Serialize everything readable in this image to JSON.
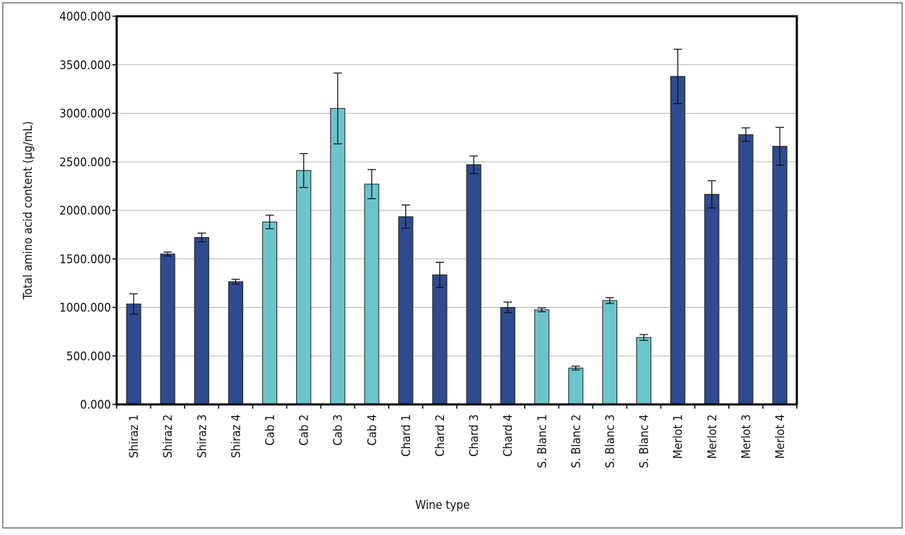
{
  "chart_data": {
    "type": "bar",
    "title": "",
    "xlabel": "Wine type",
    "ylabel": "Total amino acid content (µg/mL)",
    "ylim": [
      0,
      4000
    ],
    "yticks": [
      0,
      500,
      1000,
      1500,
      2000,
      2500,
      3000,
      3500,
      4000
    ],
    "ytick_labels": [
      "0.000",
      "500.000",
      "1000.000",
      "1500.000",
      "2000.000",
      "2500.000",
      "3000.000",
      "3500.000",
      "4000.000"
    ],
    "grid": "horizontal",
    "legend": "none",
    "categories": [
      "Shiraz 1",
      "Shiraz 2",
      "Shiraz 3",
      "Shiraz 4",
      "Cab 1",
      "Cab 2",
      "Cab 3",
      "Cab 4",
      "Chard 1",
      "Chard 2",
      "Chard 3",
      "Chard 4",
      "S. Blanc 1",
      "S. Blanc 2",
      "S. Blanc 3",
      "S. Blanc 4",
      "Merlot 1",
      "Merlot 2",
      "Merlot 3",
      "Merlot 4"
    ],
    "values": [
      1035,
      1550,
      1720,
      1265,
      1880,
      2410,
      3050,
      2270,
      1935,
      1335,
      2470,
      1000,
      975,
      375,
      1070,
      690,
      3380,
      2165,
      2780,
      2660
    ],
    "errors": [
      105,
      20,
      45,
      25,
      70,
      175,
      365,
      150,
      120,
      130,
      90,
      55,
      20,
      20,
      30,
      30,
      280,
      140,
      70,
      195
    ],
    "bar_colors": [
      "#2f4a8f",
      "#2f4a8f",
      "#2f4a8f",
      "#2f4a8f",
      "#6cc5cc",
      "#6cc5cc",
      "#6cc5cc",
      "#6cc5cc",
      "#2f4a8f",
      "#2f4a8f",
      "#2f4a8f",
      "#2f4a8f",
      "#6cc5cc",
      "#6cc5cc",
      "#6cc5cc",
      "#6cc5cc",
      "#2f4a8f",
      "#2f4a8f",
      "#2f4a8f",
      "#2f4a8f"
    ],
    "colors": {
      "dark_bar": "#2f4a8f",
      "light_bar": "#6cc5cc",
      "gridline": "#b4b4b4",
      "plot_border": "#000000",
      "outer_frame": "#6e6e6e",
      "bar_outline": "#1c1c1c"
    }
  }
}
